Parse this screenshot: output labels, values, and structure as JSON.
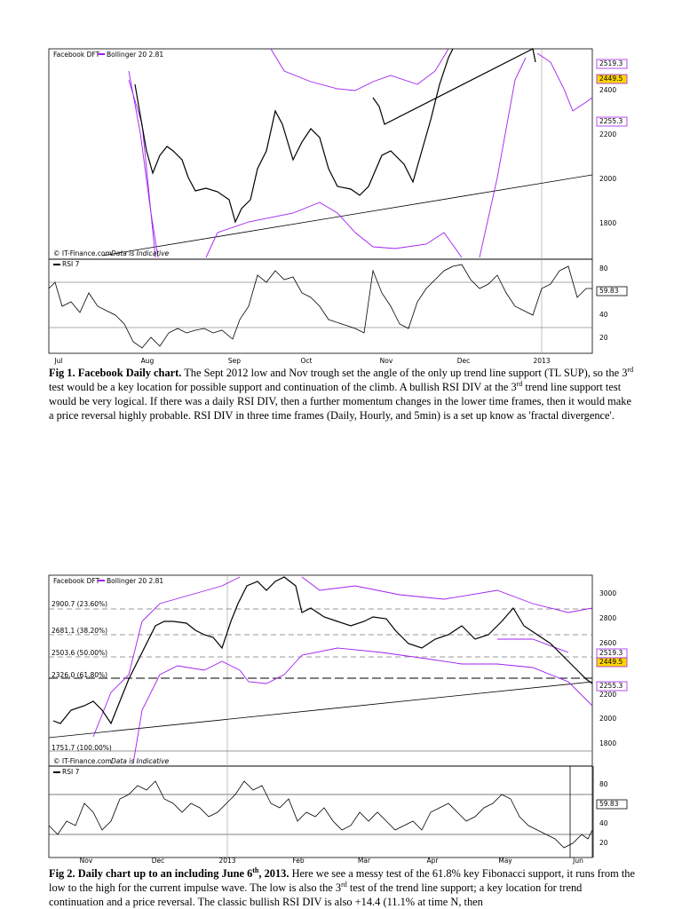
{
  "figures": [
    {
      "legend": [
        "Facebook DFT",
        "Bollinger 20 2.81"
      ],
      "price_labels": [
        "2519.3",
        "2449.5",
        "2400",
        "2255.3",
        "2200",
        "2000",
        "1800"
      ],
      "footer": [
        "© IT-Finance.com",
        "Data is Indicative"
      ],
      "rsi_title": "RSI 7",
      "rsi_labels": [
        "80",
        "59.83",
        "40",
        "20"
      ],
      "x_labels": [
        "Jul",
        "Aug",
        "Sep",
        "Oct",
        "Nov",
        "Dec",
        "2013"
      ],
      "caption": {
        "label": "Fig 1. Facebook Daily chart.",
        "parts": [
          "The Sept 2012 low and Nov trough set the angle of the only up trend line support (TL SUP), so the 3",
          "rd",
          " test would be a key location for possible support and continuation of the climb. A bullish RSI DIV  at the 3",
          "rd",
          " trend line support test would be very logical. If there was a daily RSI DIV, then a further momentum changes in the lower time frames, then it would make a price reversal highly probable. RSI DIV in three time frames (Daily, Hourly, and 5min) is a set up know as 'fractal divergence'."
        ]
      }
    },
    {
      "legend": [
        "Facebook DFT",
        "Bollinger 20 2.81"
      ],
      "price_labels": [
        "3000",
        "2800",
        "2600",
        "2519.3",
        "2449.5",
        "2255.3",
        "2200",
        "2000",
        "1800"
      ],
      "fib_labels": [
        "2900.7 (23.60%)",
        "2681.1 (38.20%)",
        "2503.6 (50.00%)",
        "2326.0 (61.80%)",
        "1751.7 (100.00%)"
      ],
      "footer": [
        "© IT-Finance.com",
        "Data is Indicative"
      ],
      "rsi_title": "RSI 7",
      "rsi_labels": [
        "80",
        "59.83",
        "40",
        "20"
      ],
      "x_labels": [
        "Nov",
        "Dec",
        "2013",
        "Feb",
        "Mar",
        "Apr",
        "May",
        "Jun"
      ],
      "caption": {
        "label_parts": [
          "Fig 2. Daily chart up  to an including June 6",
          "th",
          ", 2013."
        ],
        "parts": [
          "Here we see a messy test of the 61.8% key Fibonacci support, it runs from the low to the high for the current impulse wave. The low is also the 3",
          "rd",
          " test of the trend line support; a key location for trend continuation and a price reversal. The classic bullish RSI DIV is also +14.4 (11.1% at time N, then"
        ]
      }
    }
  ]
}
